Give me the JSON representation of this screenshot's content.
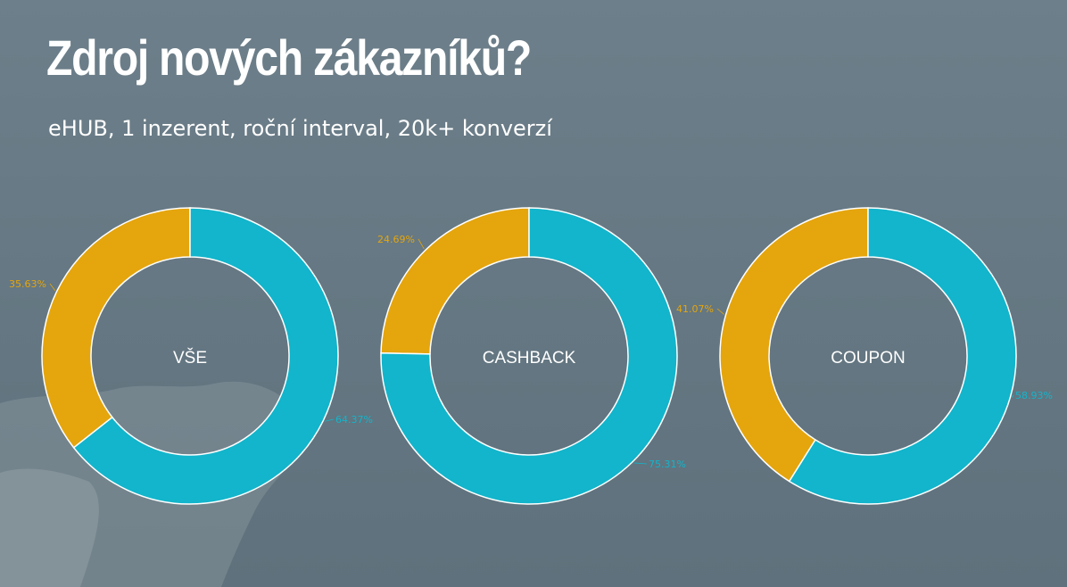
{
  "title": "Zdroj nových zákazníků?",
  "subtitle": "eHUB, 1 inzerent, roční interval, 20k+ konverzí",
  "colors": {
    "series_a": "#e5a50d",
    "series_b": "#12b5cb"
  },
  "chart_data": [
    {
      "type": "pie",
      "center_label": "VŠE",
      "slices": [
        {
          "value": 35.63,
          "label": "35.63%",
          "color": "#e5a50d"
        },
        {
          "value": 64.37,
          "label": "64.37%",
          "color": "#12b5cb"
        }
      ]
    },
    {
      "type": "pie",
      "center_label": "CASHBACK",
      "slices": [
        {
          "value": 24.69,
          "label": "24.69%",
          "color": "#e5a50d"
        },
        {
          "value": 75.31,
          "label": "75.31%",
          "color": "#12b5cb"
        }
      ]
    },
    {
      "type": "pie",
      "center_label": "COUPON",
      "slices": [
        {
          "value": 41.07,
          "label": "41.07%",
          "color": "#e5a50d"
        },
        {
          "value": 58.93,
          "label": "58.93%",
          "color": "#12b5cb"
        }
      ]
    }
  ]
}
